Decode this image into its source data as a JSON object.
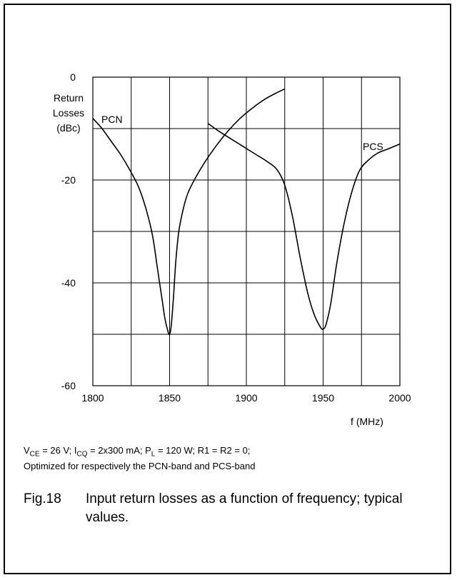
{
  "chart_data": {
    "type": "line",
    "ylabel_lines": [
      "Return",
      "Losses",
      "(dBc)"
    ],
    "xlabel_lines": [
      "f (MHz)"
    ],
    "xlim": [
      1800,
      2000
    ],
    "ylim": [
      -60,
      0
    ],
    "x_ticks": [
      1800,
      1850,
      1900,
      1950,
      2000
    ],
    "y_ticks": [
      0,
      -20,
      -40,
      -60
    ],
    "x_grid": [
      1800,
      1825,
      1850,
      1875,
      1900,
      1925,
      1950,
      1975,
      2000
    ],
    "y_grid": [
      0,
      -10,
      -20,
      -30,
      -40,
      -50,
      -60
    ],
    "grid": true,
    "series": [
      {
        "name": "PCN",
        "x": [
          1800,
          1806,
          1812,
          1818,
          1824,
          1830,
          1835,
          1839,
          1842,
          1845,
          1847,
          1849,
          1850,
          1851,
          1852.5,
          1854,
          1856,
          1859,
          1862,
          1867,
          1873,
          1880,
          1888,
          1896,
          1904,
          1912,
          1920,
          1925
        ],
        "y": [
          -8,
          -10,
          -12.5,
          -15,
          -18,
          -21.5,
          -26,
          -31,
          -37,
          -43,
          -47,
          -49.5,
          -50,
          -48.5,
          -43,
          -36,
          -30,
          -25.5,
          -22.5,
          -19.5,
          -16.5,
          -13.5,
          -10.5,
          -8,
          -6,
          -4.3,
          -3,
          -2.3
        ]
      },
      {
        "name": "PCS",
        "x": [
          1875,
          1882,
          1890,
          1898,
          1906,
          1914,
          1920,
          1925,
          1930,
          1935,
          1940,
          1944,
          1948,
          1950,
          1952,
          1955,
          1959,
          1964,
          1969,
          1974,
          1980,
          1986,
          1992,
          2000
        ],
        "y": [
          -9,
          -10.5,
          -12,
          -13.5,
          -15,
          -16.5,
          -18,
          -21,
          -27,
          -35,
          -42,
          -46,
          -48.5,
          -49,
          -48,
          -44,
          -36,
          -28,
          -22,
          -18,
          -16,
          -14.7,
          -14,
          -13
        ]
      }
    ]
  },
  "conditions_line1": {
    "vce_sym": "V",
    "vce_sub": "CE",
    "vce_val": " = 26 V; ",
    "icq_sym": "I",
    "icq_sub": "CQ",
    "icq_val": " = 2x300 mA; ",
    "pl_sym": "P",
    "pl_sub": "L",
    "pl_val": " = 120 W; R1 = R2 = 0;"
  },
  "conditions_line2": "Optimized for respectively the PCN-band and PCS-band",
  "caption": {
    "figure_number": "Fig.18",
    "text": "Input return losses as a function of frequency; typical values."
  }
}
